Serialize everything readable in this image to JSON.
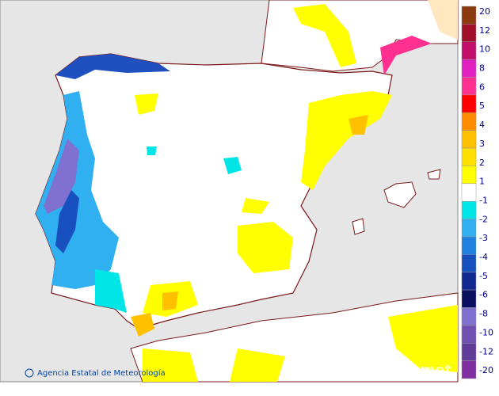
{
  "map": {
    "credit": "Agencia Estatal de Meteorología",
    "watermark": "aemet",
    "legend": {
      "labels": [
        "20",
        "12",
        "10",
        "8",
        "6",
        "5",
        "4",
        "3",
        "2",
        "1",
        "-1",
        "-2",
        "-3",
        "-4",
        "-5",
        "-6",
        "-8",
        "-10",
        "-12",
        "-20"
      ],
      "colors": [
        "#8b3a0f",
        "#a0102a",
        "#c0106a",
        "#e020c0",
        "#ff3090",
        "#ff0000",
        "#ff8c00",
        "#ffc000",
        "#ffe000",
        "#ffff00",
        "#ffffff",
        "#00e5e5",
        "#30b0f0",
        "#2080e0",
        "#1850c0",
        "#102890",
        "#0a1060",
        "#8070d0",
        "#7050b0",
        "#603c98",
        "#8030a0"
      ]
    }
  }
}
